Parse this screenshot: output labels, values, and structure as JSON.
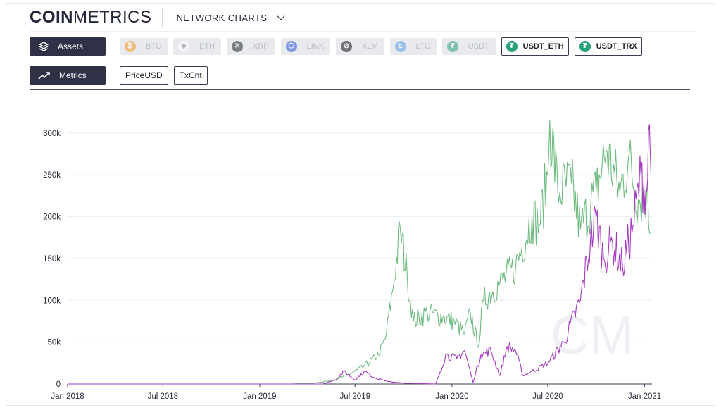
{
  "header": {
    "logo_bold": "COIN",
    "logo_light": "METRICS",
    "nav_label": "NETWORK CHARTS"
  },
  "assets_row": {
    "label": "Assets",
    "chips": [
      {
        "label": "BTC",
        "state": "disabled",
        "icon": "bitcoin-icon",
        "color": "#f7931a",
        "glyph": "₿"
      },
      {
        "label": "ETH",
        "state": "disabled",
        "icon": "ethereum-icon",
        "color": "#ffffff",
        "glyph": "◆"
      },
      {
        "label": "XRP",
        "state": "disabled",
        "icon": "xrp-icon",
        "color": "#23292f",
        "glyph": "✕"
      },
      {
        "label": "LINK",
        "state": "disabled",
        "icon": "chainlink-icon",
        "color": "#2a5ada",
        "glyph": "⬡"
      },
      {
        "label": "XLM",
        "state": "disabled",
        "icon": "stellar-icon",
        "color": "#111111",
        "glyph": "⊘"
      },
      {
        "label": "LTC",
        "state": "disabled",
        "icon": "litecoin-icon",
        "color": "#5aa0e6",
        "glyph": "Ł"
      },
      {
        "label": "USDT",
        "state": "disabled",
        "icon": "tether-icon",
        "color": "#26a17b",
        "glyph": "₮"
      },
      {
        "label": "USDT_ETH",
        "state": "active",
        "icon": "tether-icon",
        "color": "#26a17b",
        "glyph": "₮"
      },
      {
        "label": "USDT_TRX",
        "state": "active",
        "icon": "tether-icon",
        "color": "#26a17b",
        "glyph": "₮"
      }
    ]
  },
  "metrics_row": {
    "label": "Metrics",
    "options": [
      "PriceUSD",
      "TxCnt"
    ]
  },
  "watermark": "CM",
  "chart_data": {
    "type": "line",
    "x_start": "2018-01-01",
    "x_end": "2021-01-15",
    "x_ticks": [
      {
        "label": "Jan 2018",
        "date": "2018-01-01"
      },
      {
        "label": "Jul 2018",
        "date": "2018-07-01"
      },
      {
        "label": "Jan 2019",
        "date": "2019-01-01"
      },
      {
        "label": "Jul 2019",
        "date": "2019-07-01"
      },
      {
        "label": "Jan 2020",
        "date": "2020-01-01"
      },
      {
        "label": "Jul 2020",
        "date": "2020-07-01"
      },
      {
        "label": "Jan 2021",
        "date": "2021-01-01"
      }
    ],
    "ylim": [
      0,
      320000
    ],
    "y_ticks": [
      {
        "label": "0",
        "value": 0
      },
      {
        "label": "50k",
        "value": 50000
      },
      {
        "label": "100k",
        "value": 100000
      },
      {
        "label": "150k",
        "value": 150000
      },
      {
        "label": "200k",
        "value": 200000
      },
      {
        "label": "250k",
        "value": 250000
      },
      {
        "label": "300k",
        "value": 300000
      }
    ],
    "grid": true,
    "series": [
      {
        "color": "#6dbb7e",
        "points": [
          [
            "2018-01-01",
            0
          ],
          [
            "2019-03-01",
            0
          ],
          [
            "2019-04-15",
            1000
          ],
          [
            "2019-05-15",
            4000
          ],
          [
            "2019-06-15",
            10000
          ],
          [
            "2019-07-15",
            20000
          ],
          [
            "2019-08-15",
            35000
          ],
          [
            "2019-08-28",
            55000
          ],
          [
            "2019-09-10",
            110000
          ],
          [
            "2019-09-25",
            185000
          ],
          [
            "2019-10-08",
            130000
          ],
          [
            "2019-10-20",
            75000
          ],
          [
            "2019-11-15",
            85000
          ],
          [
            "2019-12-15",
            80000
          ],
          [
            "2020-01-05",
            75000
          ],
          [
            "2020-01-25",
            60000
          ],
          [
            "2020-02-05",
            85000
          ],
          [
            "2020-02-20",
            45000
          ],
          [
            "2020-03-01",
            100000
          ],
          [
            "2020-04-01",
            120000
          ],
          [
            "2020-05-01",
            140000
          ],
          [
            "2020-06-01",
            200000
          ],
          [
            "2020-06-15",
            190000
          ],
          [
            "2020-07-01",
            250000
          ],
          [
            "2020-07-05",
            315000
          ],
          [
            "2020-07-20",
            230000
          ],
          [
            "2020-08-15",
            240000
          ],
          [
            "2020-09-01",
            185000
          ],
          [
            "2020-10-01",
            230000
          ],
          [
            "2020-10-20",
            280000
          ],
          [
            "2020-11-15",
            230000
          ],
          [
            "2020-12-01",
            270000
          ],
          [
            "2020-12-20",
            220000
          ],
          [
            "2021-01-05",
            230000
          ],
          [
            "2021-01-12",
            180000
          ]
        ]
      },
      {
        "color": "#a63bc0",
        "points": [
          [
            "2018-01-01",
            0
          ],
          [
            "2019-05-01",
            0
          ],
          [
            "2019-05-25",
            5000
          ],
          [
            "2019-06-10",
            15000
          ],
          [
            "2019-07-01",
            5000
          ],
          [
            "2019-07-20",
            15000
          ],
          [
            "2019-08-05",
            8000
          ],
          [
            "2019-09-01",
            3000
          ],
          [
            "2019-10-01",
            1000
          ],
          [
            "2019-12-01",
            0
          ],
          [
            "2019-12-10",
            15000
          ],
          [
            "2019-12-20",
            35000
          ],
          [
            "2020-01-10",
            30000
          ],
          [
            "2020-01-25",
            40000
          ],
          [
            "2020-02-10",
            2000
          ],
          [
            "2020-02-25",
            35000
          ],
          [
            "2020-03-15",
            40000
          ],
          [
            "2020-04-01",
            10000
          ],
          [
            "2020-04-15",
            45000
          ],
          [
            "2020-05-01",
            40000
          ],
          [
            "2020-05-15",
            10000
          ],
          [
            "2020-06-01",
            15000
          ],
          [
            "2020-07-01",
            25000
          ],
          [
            "2020-08-01",
            50000
          ],
          [
            "2020-09-01",
            100000
          ],
          [
            "2020-09-20",
            170000
          ],
          [
            "2020-10-01",
            200000
          ],
          [
            "2020-10-15",
            150000
          ],
          [
            "2020-11-01",
            170000
          ],
          [
            "2020-11-20",
            140000
          ],
          [
            "2020-12-10",
            190000
          ],
          [
            "2020-12-25",
            250000
          ],
          [
            "2021-01-05",
            230000
          ],
          [
            "2021-01-10",
            310000
          ],
          [
            "2021-01-13",
            250000
          ]
        ]
      }
    ]
  }
}
